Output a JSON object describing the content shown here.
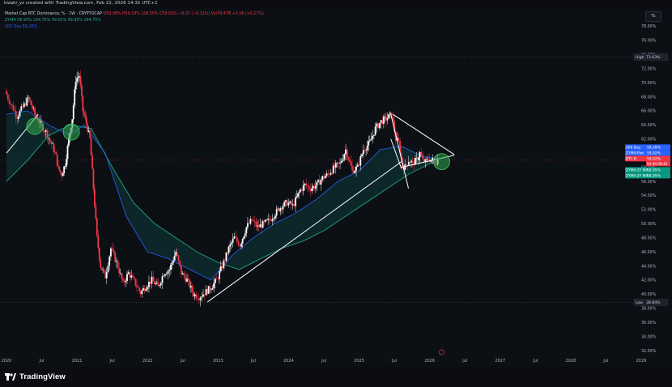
{
  "header": {
    "credit": "kizaki_yz created with TradingView.com, Feb 22, 2026 14:31 UTC+1"
  },
  "legend": {
    "symbol": "Market Cap BTC Dominance, % · 1W · CRYPTOCAP",
    "ohlc": "O59.08% H59.18% L58.50% C59.02% −0.07 (−0.11%) Vol78.47B +0.16 (+0.27%)",
    "zyma": "ZYMA 58.95% 294.75% 59.02% 58.95% 294.75%",
    "day200": "200 Day 59.26%"
  },
  "percent_button": "%",
  "branding": {
    "name": "TradingView"
  },
  "colors": {
    "background": "#0c0f14",
    "bull": "#ffffff",
    "bear": "#f23645",
    "ma_green": "#1e8f6e",
    "ma_blue": "#2962ff",
    "cloud": "#0f3a3a",
    "circle": "#2fa84f",
    "trendline": "#ffffff"
  },
  "chart_data": {
    "type": "candlestick",
    "title": "Market Cap BTC Dominance, % · 1W · CRYPTOCAP",
    "ylabel": "%",
    "ylim": [
      32,
      80
    ],
    "y_ticks": [
      "32.00%",
      "34.00%",
      "36.00%",
      "38.00%",
      "40.00%",
      "42.00%",
      "44.00%",
      "46.00%",
      "48.00%",
      "50.00%",
      "52.00%",
      "54.00%",
      "56.00%",
      "58.00%",
      "60.00%",
      "62.00%",
      "64.00%",
      "66.00%",
      "68.00%",
      "70.00%",
      "72.00%",
      "74.00%",
      "76.00%",
      "78.00%"
    ],
    "x_ticks": [
      "2020",
      "Jul",
      "2021",
      "Jul",
      "2022",
      "Jul",
      "2023",
      "Jul",
      "2024",
      "Jul",
      "2025",
      "Jul",
      "2026",
      "Jul",
      "2027",
      "Jul",
      "2028",
      "Jul",
      "2029"
    ],
    "x_range": [
      2020.0,
      2029.0
    ],
    "high": {
      "label": "High",
      "value": "73.63%"
    },
    "low": {
      "label": "Low",
      "value": "38.84%"
    },
    "price_labels": [
      {
        "name": "200 Day",
        "value": "59.26%",
        "color": "#2962ff"
      },
      {
        "name": "ZYMA:Plot",
        "value": "59.02%",
        "color": "#2962ff"
      },
      {
        "name": "BTC.D",
        "value": "59.02%",
        "sub": "5d 09:28:42",
        "color": "#f23645"
      },
      {
        "name": "ZYMA:2Y MA",
        "value": "58.95%",
        "color": "#089981"
      },
      {
        "name": "ZYMA:2Y MA",
        "value": "58.95%",
        "color": "#089981"
      }
    ],
    "series": [
      {
        "name": "BTC.D",
        "points": [
          [
            2020.0,
            68.8
          ],
          [
            2020.08,
            67.0
          ],
          [
            2020.17,
            65.2
          ],
          [
            2020.25,
            66.5
          ],
          [
            2020.33,
            67.8
          ],
          [
            2020.42,
            65.5
          ],
          [
            2020.5,
            64.2
          ],
          [
            2020.58,
            63.0
          ],
          [
            2020.67,
            61.0
          ],
          [
            2020.72,
            59.5
          ],
          [
            2020.75,
            57.8
          ],
          [
            2020.8,
            57.0
          ],
          [
            2020.85,
            58.5
          ],
          [
            2020.9,
            62.0
          ],
          [
            2020.95,
            65.0
          ],
          [
            2021.0,
            70.5
          ],
          [
            2021.05,
            71.0
          ],
          [
            2021.1,
            66.0
          ],
          [
            2021.15,
            64.2
          ],
          [
            2021.2,
            62.0
          ],
          [
            2021.25,
            55.0
          ],
          [
            2021.3,
            48.0
          ],
          [
            2021.35,
            44.0
          ],
          [
            2021.42,
            42.5
          ],
          [
            2021.5,
            46.5
          ],
          [
            2021.58,
            44.5
          ],
          [
            2021.67,
            41.5
          ],
          [
            2021.75,
            43.0
          ],
          [
            2021.83,
            41.8
          ],
          [
            2021.92,
            40.2
          ],
          [
            2022.0,
            41.2
          ],
          [
            2022.08,
            42.0
          ],
          [
            2022.17,
            41.0
          ],
          [
            2022.25,
            43.0
          ],
          [
            2022.33,
            43.5
          ],
          [
            2022.42,
            46.0
          ],
          [
            2022.5,
            43.0
          ],
          [
            2022.58,
            42.0
          ],
          [
            2022.67,
            40.0
          ],
          [
            2022.75,
            39.6
          ],
          [
            2022.83,
            40.2
          ],
          [
            2022.92,
            41.0
          ],
          [
            2023.0,
            42.0
          ],
          [
            2023.08,
            44.0
          ],
          [
            2023.17,
            46.5
          ],
          [
            2023.25,
            48.0
          ],
          [
            2023.33,
            47.0
          ],
          [
            2023.42,
            49.5
          ],
          [
            2023.5,
            50.5
          ],
          [
            2023.58,
            49.5
          ],
          [
            2023.67,
            50.0
          ],
          [
            2023.75,
            50.5
          ],
          [
            2023.83,
            51.5
          ],
          [
            2023.92,
            52.5
          ],
          [
            2024.0,
            53.0
          ],
          [
            2024.08,
            52.5
          ],
          [
            2024.17,
            54.5
          ],
          [
            2024.25,
            55.5
          ],
          [
            2024.33,
            55.0
          ],
          [
            2024.42,
            55.5
          ],
          [
            2024.5,
            56.5
          ],
          [
            2024.58,
            57.0
          ],
          [
            2024.67,
            58.0
          ],
          [
            2024.75,
            58.5
          ],
          [
            2024.83,
            60.5
          ],
          [
            2024.92,
            57.5
          ],
          [
            2025.0,
            58.0
          ],
          [
            2025.08,
            60.5
          ],
          [
            2025.17,
            61.5
          ],
          [
            2025.25,
            63.5
          ],
          [
            2025.33,
            64.5
          ],
          [
            2025.42,
            65.0
          ],
          [
            2025.48,
            65.5
          ],
          [
            2025.54,
            62.0
          ],
          [
            2025.58,
            61.5
          ],
          [
            2025.63,
            58.2
          ],
          [
            2025.67,
            58.0
          ],
          [
            2025.72,
            59.0
          ],
          [
            2025.78,
            58.6
          ],
          [
            2025.83,
            59.0
          ],
          [
            2025.88,
            60.0
          ],
          [
            2025.92,
            59.0
          ],
          [
            2025.96,
            58.7
          ],
          [
            2026.0,
            59.2
          ],
          [
            2026.06,
            59.0
          ],
          [
            2026.1,
            58.7
          ],
          [
            2026.13,
            59.0
          ]
        ]
      },
      {
        "name": "ZYMA:2Y MA",
        "points": [
          [
            2020.0,
            56.0
          ],
          [
            2020.3,
            59.0
          ],
          [
            2020.6,
            62.5
          ],
          [
            2020.9,
            64.0
          ],
          [
            2021.2,
            63.5
          ],
          [
            2021.5,
            58.0
          ],
          [
            2021.8,
            53.0
          ],
          [
            2022.1,
            50.0
          ],
          [
            2022.4,
            48.0
          ],
          [
            2022.7,
            46.0
          ],
          [
            2023.0,
            44.5
          ],
          [
            2023.3,
            43.5
          ],
          [
            2023.6,
            45.0
          ],
          [
            2023.9,
            46.5
          ],
          [
            2024.2,
            47.5
          ],
          [
            2024.5,
            49.0
          ],
          [
            2024.8,
            51.0
          ],
          [
            2025.1,
            53.0
          ],
          [
            2025.4,
            55.0
          ],
          [
            2025.7,
            57.0
          ],
          [
            2026.0,
            58.5
          ],
          [
            2026.13,
            58.95
          ]
        ]
      },
      {
        "name": "200 Day",
        "points": [
          [
            2020.0,
            65.5
          ],
          [
            2020.3,
            66.0
          ],
          [
            2020.6,
            64.0
          ],
          [
            2020.9,
            62.5
          ],
          [
            2021.1,
            64.0
          ],
          [
            2021.4,
            60.0
          ],
          [
            2021.7,
            51.0
          ],
          [
            2022.0,
            46.0
          ],
          [
            2022.3,
            45.0
          ],
          [
            2022.6,
            43.5
          ],
          [
            2022.9,
            42.0
          ],
          [
            2023.2,
            45.5
          ],
          [
            2023.5,
            48.0
          ],
          [
            2023.8,
            50.0
          ],
          [
            2024.1,
            51.5
          ],
          [
            2024.4,
            53.5
          ],
          [
            2024.7,
            56.0
          ],
          [
            2025.0,
            57.5
          ],
          [
            2025.3,
            60.5
          ],
          [
            2025.6,
            61.0
          ],
          [
            2025.9,
            59.5
          ],
          [
            2026.13,
            59.26
          ]
        ]
      }
    ],
    "trendlines": [
      {
        "from": [
          2020.0,
          60.0
        ],
        "to": [
          2020.45,
          65.5
        ]
      },
      {
        "from": [
          2022.85,
          38.9
        ],
        "to": [
          2025.6,
          58.8
        ]
      },
      {
        "from": [
          2025.45,
          62.0
        ],
        "to": [
          2025.6,
          57.8
        ]
      },
      {
        "from": [
          2025.48,
          65.5
        ],
        "to": [
          2026.35,
          59.8
        ]
      },
      {
        "from": [
          2025.45,
          65.5
        ],
        "to": [
          2025.7,
          55.0
        ]
      },
      {
        "from": [
          2025.6,
          58.0
        ],
        "to": [
          2026.35,
          59.7
        ]
      }
    ],
    "markers": [
      {
        "type": "circle",
        "x": 2020.4,
        "y": 63.8
      },
      {
        "type": "circle",
        "x": 2020.92,
        "y": 63.0
      },
      {
        "type": "circle",
        "x": 2026.17,
        "y": 58.8
      }
    ],
    "grid": false,
    "legend_position": "top-left"
  }
}
